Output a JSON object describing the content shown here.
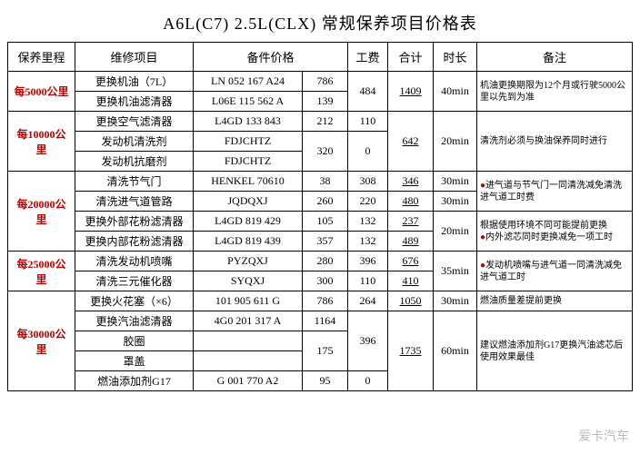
{
  "title": "A6L(C7) 2.5L(CLX) 常规保养项目价格表",
  "headers": {
    "mileage": "保养里程",
    "item": "维修项目",
    "part": "备件价格",
    "labor": "工费",
    "total": "合计",
    "time": "时长",
    "note": "备注"
  },
  "groups": [
    {
      "mileage": "每5000公里",
      "rows": [
        {
          "item": "更换机油（7L）",
          "part": "LN 052 167 A24",
          "price": "786"
        },
        {
          "item": "更换机油滤清器",
          "part": "L06E 115 562 A",
          "price": "139"
        }
      ],
      "labor": "484",
      "total": "1409",
      "time": "40min",
      "note": "机油更换期限为12个月或行驶5000公里以先到为准"
    },
    {
      "mileage": "每10000公里",
      "rows": [
        {
          "item": "更换空气滤清器",
          "part": "L4GD 133 843",
          "price": "212",
          "labor": "110"
        },
        {
          "item": "发动机清洗剂",
          "part": "FDJCHTZ"
        },
        {
          "item": "发动机抗磨剂",
          "part": "FDJCHTZ"
        }
      ],
      "sub_price": "320",
      "sub_labor": "0",
      "total": "642",
      "time": "20min",
      "note": "清洗剂必须与换油保养同时进行"
    },
    {
      "mileage": "每20000公里",
      "rows": [
        {
          "item": "清洗节气门",
          "part": "HENKEL 70610",
          "price": "38",
          "labor": "308",
          "total": "346",
          "time": "30min"
        },
        {
          "item": "清洗进气道管路",
          "part": "JQDQXJ",
          "price": "260",
          "labor": "220",
          "total": "480",
          "time": "30min"
        },
        {
          "item": "更换外部花粉滤清器",
          "part": "L4GD 819 429",
          "price": "105",
          "labor": "132",
          "total": "237"
        },
        {
          "item": "更换内部花粉滤清器",
          "part": "L4GD 819 439",
          "price": "357",
          "labor": "132",
          "total": "489"
        }
      ],
      "time34": "20min",
      "note12": "●进气道与节气门一同清洗减免清洗进气道工时费",
      "note34": "根据使用环境不同可能提前更换\n●内外滤芯同时更换减免一项工时"
    },
    {
      "mileage": "每25000公里",
      "rows": [
        {
          "item": "清洗发动机喷嘴",
          "part": "PYZQXJ",
          "price": "280",
          "labor": "396",
          "total": "676"
        },
        {
          "item": "清洗三元催化器",
          "part": "SYQXJ",
          "price": "300",
          "labor": "110",
          "total": "410"
        }
      ],
      "time": "35min",
      "note": "●发动机喷嘴与进气道一同清洗减免进气道工时"
    },
    {
      "mileage": "每30000公里",
      "rows": [
        {
          "item": "更换火花塞（×6）",
          "part": "101 905 611 G",
          "price": "786",
          "labor": "264",
          "total": "1050",
          "time": "30min",
          "note": "燃油质量差提前更换"
        },
        {
          "item": "更换汽油滤清器",
          "part": "4G0 201 317 A",
          "price": "1164"
        },
        {
          "item": "胶圈",
          "part": ""
        },
        {
          "item": "罩盖",
          "part": ""
        },
        {
          "item": "燃油添加剂G17",
          "part": "G 001 770 A2",
          "price": "95",
          "labor": "0"
        }
      ],
      "sub_price": "175",
      "labor2": "396",
      "total2": "1735",
      "time2": "60min",
      "note2": "建议燃油添加剂G17更换汽油滤芯后使用效果最佳"
    }
  ],
  "watermark": "爱卡汽车"
}
